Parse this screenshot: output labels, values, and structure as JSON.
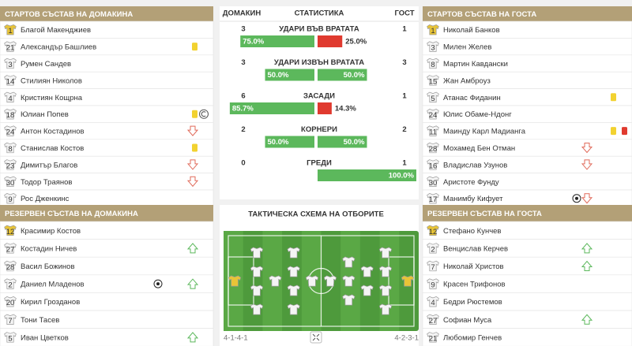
{
  "home_lineup": {
    "title": "СТАРТОВ СЪСТАВ НА ДОМАКИНА",
    "players": [
      {
        "number": 1,
        "name": "Благой Макенджиев"
      },
      {
        "number": 21,
        "name": "Александър Башлиев"
      },
      {
        "number": 3,
        "name": "Румен Сандев"
      },
      {
        "number": 14,
        "name": "Стилиян Николов"
      },
      {
        "number": 4,
        "name": "Кристиян Кощрна"
      },
      {
        "number": 18,
        "name": "Юлиан Попев"
      },
      {
        "number": 24,
        "name": "Антон Костадинов"
      },
      {
        "number": 8,
        "name": "Станислав Костов"
      },
      {
        "number": 23,
        "name": "Димитър Благов"
      },
      {
        "number": 30,
        "name": "Тодор Траянов"
      },
      {
        "number": 9,
        "name": "Рос Дженкинс"
      }
    ]
  },
  "home_reserves": {
    "title": "РЕЗЕРВЕН СЪСТАВ НА ДОМАКИНА",
    "players": [
      {
        "number": 12,
        "name": "Красимир Костов"
      },
      {
        "number": 27,
        "name": "Костадин Ничев"
      },
      {
        "number": 28,
        "name": "Васил Божинов"
      },
      {
        "number": 2,
        "name": "Даниел Младенов"
      },
      {
        "number": 20,
        "name": "Кирил Грозданов"
      },
      {
        "number": 7,
        "name": "Тони Тасев"
      },
      {
        "number": 5,
        "name": "Иван Цветков"
      }
    ]
  },
  "away_lineup": {
    "title": "СТАРТОВ СЪСТАВ НА ГОСТА",
    "players": [
      {
        "number": 1,
        "name": "Николай Банков"
      },
      {
        "number": 3,
        "name": "Милен Желев"
      },
      {
        "number": 8,
        "name": "Мартин Кавдански"
      },
      {
        "number": 15,
        "name": "Жан Амброуз"
      },
      {
        "number": 5,
        "name": "Атанас Фиданин"
      },
      {
        "number": 24,
        "name": "Юлис Обаме-Ндонг"
      },
      {
        "number": 11,
        "name": "Маинду Карл Мадианга"
      },
      {
        "number": 28,
        "name": "Мохамед Бен Отман"
      },
      {
        "number": 16,
        "name": "Владислав Узунов"
      },
      {
        "number": 30,
        "name": "Аристоте Фунду"
      },
      {
        "number": 17,
        "name": "Манимбу Кифует"
      }
    ]
  },
  "away_reserves": {
    "title": "РЕЗЕРВЕН СЪСТАВ НА ГОСТА",
    "players": [
      {
        "number": 12,
        "name": "Стефано Кунчев"
      },
      {
        "number": 2,
        "name": "Венцислав Керчев"
      },
      {
        "number": 7,
        "name": "Николай Христов"
      },
      {
        "number": 9,
        "name": "Красен Трифонов"
      },
      {
        "number": 4,
        "name": "Бедри Рюстемов"
      },
      {
        "number": 27,
        "name": "Софиан Муса"
      },
      {
        "number": 21,
        "name": "Любомир Генчев"
      }
    ]
  },
  "stats": {
    "headers": [
      "ДОМАКИН",
      "СТАТИСТИКА",
      "ГОСТ"
    ],
    "rows": [
      {
        "label": "УДАРИ ВЪВ ВРАТАТА",
        "home": 3,
        "away": 1,
        "home_pct": 75,
        "home_pct_label": "75.0%",
        "away_pct": 25,
        "away_pct_label": "25.0%"
      },
      {
        "label": "УДАРИ ИЗВЪН ВРАТАТА",
        "home": 3,
        "away": 3,
        "home_pct": 50,
        "home_pct_label": "50.0%",
        "away_pct": 50,
        "away_pct_label": "50.0%"
      },
      {
        "label": "ЗАСАДИ",
        "home": 6,
        "away": 1,
        "home_pct": 85.7,
        "home_pct_label": "85.7%",
        "away_pct": 14.3,
        "away_pct_label": "14.3%"
      },
      {
        "label": "КОРНЕРИ",
        "home": 2,
        "away": 2,
        "home_pct": 50,
        "home_pct_label": "50.0%",
        "away_pct": 50,
        "away_pct_label": "50.0%"
      },
      {
        "label": "ГРЕДИ",
        "home": 0,
        "away": 1,
        "home_pct": 0,
        "away_pct": 100,
        "away_pct_label": "100.0%"
      }
    ]
  },
  "tactics": {
    "title": "ТАКТИЧЕСКА СХЕМА НА ОТБОРИТЕ",
    "home_formation": "4-1-4-1",
    "away_formation": "4-2-3-1"
  }
}
